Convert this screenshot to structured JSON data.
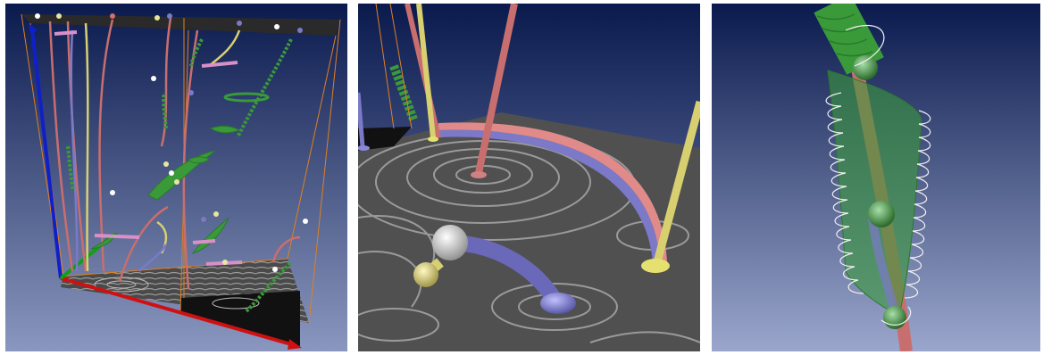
{
  "figure": {
    "panels": [
      {
        "name": "overview-topology-view",
        "description_visible": false
      },
      {
        "name": "closeup-vortex-surface-view",
        "description_visible": false
      },
      {
        "name": "closeup-green-stream-surface-view",
        "description_visible": false
      }
    ]
  },
  "colors": {
    "bg_top": "#0a1a4d",
    "bg_bottom": "#8a97bf",
    "axis_x": "#d01010",
    "axis_y": "#10a010",
    "axis_z": "#1020c8",
    "box_edge": "#e08020",
    "line_red": "#c96e6e",
    "line_yellow": "#d8d070",
    "line_blue": "#7b79c8",
    "surface_green": "#3a9a3a",
    "surface_pink": "#d890c8",
    "lic_floor": "#555555"
  }
}
